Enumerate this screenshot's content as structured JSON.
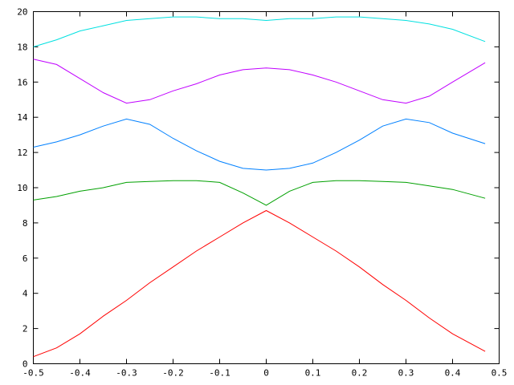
{
  "chart_data": {
    "type": "line",
    "title": "",
    "xlabel": "",
    "ylabel": "",
    "xlim": [
      -0.5,
      0.5
    ],
    "ylim": [
      0,
      20
    ],
    "grid": false,
    "legend": "none",
    "x_ticks": [
      -0.5,
      -0.4,
      -0.3,
      -0.2,
      -0.1,
      0,
      0.1,
      0.2,
      0.3,
      0.4,
      0.5
    ],
    "x_tick_labels": [
      "-0.5",
      "-0.4",
      "-0.3",
      "-0.2",
      "-0.1",
      "0",
      "0.1",
      "0.2",
      "0.3",
      "0.4",
      "0.5"
    ],
    "y_ticks": [
      0,
      2,
      4,
      6,
      8,
      10,
      12,
      14,
      16,
      18,
      20
    ],
    "y_tick_labels": [
      "0",
      "2",
      "4",
      "6",
      "8",
      "10",
      "12",
      "14",
      "16",
      "18",
      "20"
    ],
    "series": [
      {
        "color": "#ff0000",
        "points": [
          [
            -0.5,
            0.4
          ],
          [
            -0.45,
            0.9
          ],
          [
            -0.4,
            1.7
          ],
          [
            -0.35,
            2.7
          ],
          [
            -0.3,
            3.6
          ],
          [
            -0.25,
            4.6
          ],
          [
            -0.2,
            5.5
          ],
          [
            -0.15,
            6.4
          ],
          [
            -0.1,
            7.2
          ],
          [
            -0.05,
            8.0
          ],
          [
            0,
            8.7
          ],
          [
            0.05,
            8.0
          ],
          [
            0.1,
            7.2
          ],
          [
            0.15,
            6.4
          ],
          [
            0.2,
            5.5
          ],
          [
            0.25,
            4.5
          ],
          [
            0.3,
            3.6
          ],
          [
            0.35,
            2.6
          ],
          [
            0.4,
            1.7
          ],
          [
            0.47,
            0.7
          ]
        ]
      },
      {
        "color": "#00a000",
        "points": [
          [
            -0.5,
            9.3
          ],
          [
            -0.45,
            9.5
          ],
          [
            -0.4,
            9.8
          ],
          [
            -0.35,
            10.0
          ],
          [
            -0.3,
            10.3
          ],
          [
            -0.25,
            10.35
          ],
          [
            -0.2,
            10.4
          ],
          [
            -0.15,
            10.4
          ],
          [
            -0.1,
            10.3
          ],
          [
            -0.05,
            9.7
          ],
          [
            0,
            9.0
          ],
          [
            0.05,
            9.8
          ],
          [
            0.1,
            10.3
          ],
          [
            0.15,
            10.4
          ],
          [
            0.2,
            10.4
          ],
          [
            0.25,
            10.35
          ],
          [
            0.3,
            10.3
          ],
          [
            0.35,
            10.1
          ],
          [
            0.4,
            9.9
          ],
          [
            0.47,
            9.4
          ]
        ]
      },
      {
        "color": "#0080ff",
        "points": [
          [
            -0.5,
            12.3
          ],
          [
            -0.45,
            12.6
          ],
          [
            -0.4,
            13.0
          ],
          [
            -0.35,
            13.5
          ],
          [
            -0.3,
            13.9
          ],
          [
            -0.25,
            13.6
          ],
          [
            -0.2,
            12.8
          ],
          [
            -0.15,
            12.1
          ],
          [
            -0.1,
            11.5
          ],
          [
            -0.05,
            11.1
          ],
          [
            0,
            11.0
          ],
          [
            0.05,
            11.1
          ],
          [
            0.1,
            11.4
          ],
          [
            0.15,
            12.0
          ],
          [
            0.2,
            12.7
          ],
          [
            0.25,
            13.5
          ],
          [
            0.3,
            13.9
          ],
          [
            0.35,
            13.7
          ],
          [
            0.4,
            13.1
          ],
          [
            0.47,
            12.5
          ]
        ]
      },
      {
        "color": "#c000ff",
        "points": [
          [
            -0.5,
            17.3
          ],
          [
            -0.45,
            17.0
          ],
          [
            -0.4,
            16.2
          ],
          [
            -0.35,
            15.4
          ],
          [
            -0.3,
            14.8
          ],
          [
            -0.25,
            15.0
          ],
          [
            -0.2,
            15.5
          ],
          [
            -0.15,
            15.9
          ],
          [
            -0.1,
            16.4
          ],
          [
            -0.05,
            16.7
          ],
          [
            0,
            16.8
          ],
          [
            0.05,
            16.7
          ],
          [
            0.1,
            16.4
          ],
          [
            0.15,
            16.0
          ],
          [
            0.2,
            15.5
          ],
          [
            0.25,
            15.0
          ],
          [
            0.3,
            14.8
          ],
          [
            0.35,
            15.2
          ],
          [
            0.4,
            16.0
          ],
          [
            0.47,
            17.1
          ]
        ]
      },
      {
        "color": "#00e0e0",
        "points": [
          [
            -0.5,
            18.0
          ],
          [
            -0.45,
            18.4
          ],
          [
            -0.4,
            18.9
          ],
          [
            -0.35,
            19.2
          ],
          [
            -0.3,
            19.5
          ],
          [
            -0.25,
            19.6
          ],
          [
            -0.2,
            19.7
          ],
          [
            -0.15,
            19.7
          ],
          [
            -0.1,
            19.6
          ],
          [
            -0.05,
            19.6
          ],
          [
            0,
            19.5
          ],
          [
            0.05,
            19.6
          ],
          [
            0.1,
            19.6
          ],
          [
            0.15,
            19.7
          ],
          [
            0.2,
            19.7
          ],
          [
            0.25,
            19.6
          ],
          [
            0.3,
            19.5
          ],
          [
            0.35,
            19.3
          ],
          [
            0.4,
            19.0
          ],
          [
            0.47,
            18.3
          ]
        ]
      }
    ]
  }
}
